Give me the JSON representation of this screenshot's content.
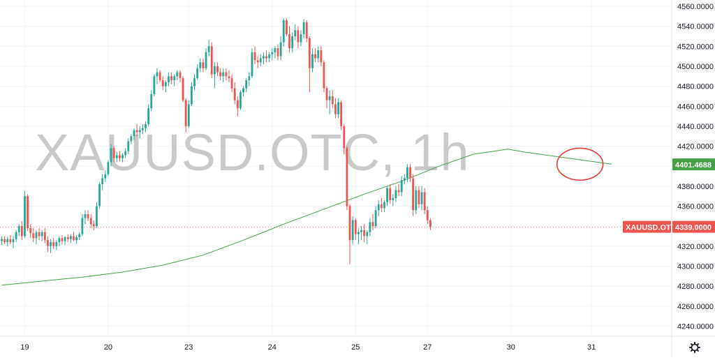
{
  "chart_data": {
    "type": "candlestick",
    "symbol": "XAUUSD.OTC, 1h",
    "timeframe": "1h",
    "ylim": [
      4225,
      4565
    ],
    "y_ticks": [
      4240,
      4260,
      4280,
      4300,
      4320,
      4340,
      4360,
      4380,
      4400,
      4420,
      4440,
      4460,
      4480,
      4500,
      4520,
      4540,
      4560
    ],
    "y_tick_labels": [
      "4240.0000",
      "4260.0000",
      "4280.0000",
      "4300.0000",
      "4320.0000",
      "4340.0000",
      "4360.0000",
      "4380.0000",
      "4400.0000",
      "4420.0000",
      "4440.0000",
      "4460.0000",
      "4480.0000",
      "4500.0000",
      "4520.0000",
      "4540.0000",
      "4560.0000"
    ],
    "x_ticks": [
      {
        "label": "19",
        "index": 8
      },
      {
        "label": "20",
        "index": 37
      },
      {
        "label": "23",
        "index": 65
      },
      {
        "label": "24",
        "index": 94
      },
      {
        "label": "25",
        "index": 123
      },
      {
        "label": "27",
        "index": 148
      },
      {
        "label": "30",
        "index": 177
      },
      {
        "label": "31",
        "index": 205
      }
    ],
    "grid": true,
    "up_color": "#26a69a",
    "down_color": "#ef5350",
    "ma_color": "#43a047",
    "annotation_color": "#e53935",
    "current_price": 4339.0,
    "current_price_label": "4339.0000",
    "price_badge_label": "XAUUSD.OTC",
    "ma_value": 4401.4688,
    "ma_value_label": "4401.4688",
    "annotation": {
      "type": "ellipse",
      "center_index": 201,
      "center_price": 4402,
      "rx_bars": 8,
      "ry_price": 16
    },
    "candles": [
      {
        "o": 4325,
        "h": 4330,
        "l": 4321,
        "c": 4327
      },
      {
        "o": 4327,
        "h": 4330,
        "l": 4322,
        "c": 4324
      },
      {
        "o": 4324,
        "h": 4329,
        "l": 4320,
        "c": 4327
      },
      {
        "o": 4327,
        "h": 4331,
        "l": 4322,
        "c": 4324
      },
      {
        "o": 4324,
        "h": 4330,
        "l": 4318,
        "c": 4327
      },
      {
        "o": 4327,
        "h": 4336,
        "l": 4324,
        "c": 4334
      },
      {
        "o": 4334,
        "h": 4342,
        "l": 4330,
        "c": 4340
      },
      {
        "o": 4340,
        "h": 4345,
        "l": 4326,
        "c": 4330
      },
      {
        "o": 4330,
        "h": 4375,
        "l": 4328,
        "c": 4370
      },
      {
        "o": 4370,
        "h": 4372,
        "l": 4335,
        "c": 4338
      },
      {
        "o": 4338,
        "h": 4342,
        "l": 4328,
        "c": 4333
      },
      {
        "o": 4333,
        "h": 4338,
        "l": 4324,
        "c": 4328
      },
      {
        "o": 4328,
        "h": 4336,
        "l": 4322,
        "c": 4334
      },
      {
        "o": 4334,
        "h": 4338,
        "l": 4326,
        "c": 4330
      },
      {
        "o": 4330,
        "h": 4336,
        "l": 4325,
        "c": 4334
      },
      {
        "o": 4334,
        "h": 4338,
        "l": 4323,
        "c": 4326
      },
      {
        "o": 4326,
        "h": 4330,
        "l": 4314,
        "c": 4320
      },
      {
        "o": 4320,
        "h": 4327,
        "l": 4313,
        "c": 4324
      },
      {
        "o": 4324,
        "h": 4328,
        "l": 4317,
        "c": 4320
      },
      {
        "o": 4320,
        "h": 4326,
        "l": 4316,
        "c": 4324
      },
      {
        "o": 4324,
        "h": 4330,
        "l": 4320,
        "c": 4328
      },
      {
        "o": 4328,
        "h": 4331,
        "l": 4322,
        "c": 4325
      },
      {
        "o": 4325,
        "h": 4330,
        "l": 4321,
        "c": 4329
      },
      {
        "o": 4329,
        "h": 4332,
        "l": 4324,
        "c": 4327
      },
      {
        "o": 4327,
        "h": 4332,
        "l": 4323,
        "c": 4330
      },
      {
        "o": 4330,
        "h": 4334,
        "l": 4325,
        "c": 4326
      },
      {
        "o": 4326,
        "h": 4331,
        "l": 4322,
        "c": 4329
      },
      {
        "o": 4329,
        "h": 4334,
        "l": 4326,
        "c": 4332
      },
      {
        "o": 4332,
        "h": 4352,
        "l": 4330,
        "c": 4348
      },
      {
        "o": 4348,
        "h": 4356,
        "l": 4342,
        "c": 4352
      },
      {
        "o": 4352,
        "h": 4356,
        "l": 4345,
        "c": 4348
      },
      {
        "o": 4348,
        "h": 4352,
        "l": 4338,
        "c": 4342
      },
      {
        "o": 4342,
        "h": 4346,
        "l": 4336,
        "c": 4340
      },
      {
        "o": 4340,
        "h": 4364,
        "l": 4338,
        "c": 4360
      },
      {
        "o": 4360,
        "h": 4384,
        "l": 4358,
        "c": 4382
      },
      {
        "o": 4382,
        "h": 4392,
        "l": 4376,
        "c": 4388
      },
      {
        "o": 4388,
        "h": 4396,
        "l": 4384,
        "c": 4392
      },
      {
        "o": 4392,
        "h": 4406,
        "l": 4390,
        "c": 4404
      },
      {
        "o": 4404,
        "h": 4422,
        "l": 4400,
        "c": 4418
      },
      {
        "o": 4418,
        "h": 4420,
        "l": 4404,
        "c": 4408
      },
      {
        "o": 4408,
        "h": 4414,
        "l": 4404,
        "c": 4411
      },
      {
        "o": 4411,
        "h": 4415,
        "l": 4405,
        "c": 4408
      },
      {
        "o": 4408,
        "h": 4413,
        "l": 4404,
        "c": 4411
      },
      {
        "o": 4411,
        "h": 4418,
        "l": 4408,
        "c": 4415
      },
      {
        "o": 4415,
        "h": 4428,
        "l": 4412,
        "c": 4425
      },
      {
        "o": 4425,
        "h": 4432,
        "l": 4422,
        "c": 4430
      },
      {
        "o": 4430,
        "h": 4438,
        "l": 4426,
        "c": 4436
      },
      {
        "o": 4436,
        "h": 4442,
        "l": 4430,
        "c": 4434
      },
      {
        "o": 4434,
        "h": 4440,
        "l": 4428,
        "c": 4436
      },
      {
        "o": 4436,
        "h": 4442,
        "l": 4432,
        "c": 4438
      },
      {
        "o": 4438,
        "h": 4445,
        "l": 4434,
        "c": 4442
      },
      {
        "o": 4442,
        "h": 4462,
        "l": 4440,
        "c": 4458
      },
      {
        "o": 4458,
        "h": 4476,
        "l": 4455,
        "c": 4472
      },
      {
        "o": 4472,
        "h": 4492,
        "l": 4470,
        "c": 4490
      },
      {
        "o": 4490,
        "h": 4498,
        "l": 4482,
        "c": 4494
      },
      {
        "o": 4494,
        "h": 4496,
        "l": 4484,
        "c": 4486
      },
      {
        "o": 4486,
        "h": 4490,
        "l": 4476,
        "c": 4480
      },
      {
        "o": 4480,
        "h": 4486,
        "l": 4474,
        "c": 4484
      },
      {
        "o": 4484,
        "h": 4494,
        "l": 4480,
        "c": 4490
      },
      {
        "o": 4490,
        "h": 4494,
        "l": 4482,
        "c": 4486
      },
      {
        "o": 4486,
        "h": 4492,
        "l": 4480,
        "c": 4490
      },
      {
        "o": 4490,
        "h": 4496,
        "l": 4486,
        "c": 4494
      },
      {
        "o": 4494,
        "h": 4496,
        "l": 4484,
        "c": 4488
      },
      {
        "o": 4488,
        "h": 4490,
        "l": 4464,
        "c": 4466
      },
      {
        "o": 4466,
        "h": 4468,
        "l": 4434,
        "c": 4440
      },
      {
        "o": 4440,
        "h": 4466,
        "l": 4438,
        "c": 4462
      },
      {
        "o": 4462,
        "h": 4484,
        "l": 4460,
        "c": 4480
      },
      {
        "o": 4480,
        "h": 4492,
        "l": 4476,
        "c": 4488
      },
      {
        "o": 4488,
        "h": 4502,
        "l": 4486,
        "c": 4498
      },
      {
        "o": 4498,
        "h": 4508,
        "l": 4494,
        "c": 4504
      },
      {
        "o": 4504,
        "h": 4508,
        "l": 4494,
        "c": 4498
      },
      {
        "o": 4498,
        "h": 4518,
        "l": 4496,
        "c": 4514
      },
      {
        "o": 4514,
        "h": 4526,
        "l": 4510,
        "c": 4520
      },
      {
        "o": 4520,
        "h": 4524,
        "l": 4488,
        "c": 4492
      },
      {
        "o": 4492,
        "h": 4504,
        "l": 4478,
        "c": 4500
      },
      {
        "o": 4500,
        "h": 4504,
        "l": 4490,
        "c": 4494
      },
      {
        "o": 4494,
        "h": 4498,
        "l": 4486,
        "c": 4490
      },
      {
        "o": 4490,
        "h": 4498,
        "l": 4484,
        "c": 4494
      },
      {
        "o": 4494,
        "h": 4498,
        "l": 4486,
        "c": 4490
      },
      {
        "o": 4490,
        "h": 4496,
        "l": 4484,
        "c": 4488
      },
      {
        "o": 4488,
        "h": 4492,
        "l": 4474,
        "c": 4478
      },
      {
        "o": 4478,
        "h": 4484,
        "l": 4462,
        "c": 4466
      },
      {
        "o": 4466,
        "h": 4470,
        "l": 4450,
        "c": 4458
      },
      {
        "o": 4458,
        "h": 4476,
        "l": 4456,
        "c": 4474
      },
      {
        "o": 4474,
        "h": 4480,
        "l": 4470,
        "c": 4478
      },
      {
        "o": 4478,
        "h": 4488,
        "l": 4474,
        "c": 4486
      },
      {
        "o": 4486,
        "h": 4494,
        "l": 4480,
        "c": 4490
      },
      {
        "o": 4490,
        "h": 4518,
        "l": 4488,
        "c": 4514
      },
      {
        "o": 4514,
        "h": 4520,
        "l": 4502,
        "c": 4506
      },
      {
        "o": 4506,
        "h": 4510,
        "l": 4498,
        "c": 4504
      },
      {
        "o": 4504,
        "h": 4512,
        "l": 4500,
        "c": 4508
      },
      {
        "o": 4508,
        "h": 4514,
        "l": 4502,
        "c": 4510
      },
      {
        "o": 4510,
        "h": 4516,
        "l": 4504,
        "c": 4508
      },
      {
        "o": 4508,
        "h": 4514,
        "l": 4504,
        "c": 4512
      },
      {
        "o": 4512,
        "h": 4518,
        "l": 4506,
        "c": 4514
      },
      {
        "o": 4514,
        "h": 4520,
        "l": 4508,
        "c": 4518
      },
      {
        "o": 4518,
        "h": 4522,
        "l": 4506,
        "c": 4510
      },
      {
        "o": 4510,
        "h": 4530,
        "l": 4506,
        "c": 4524
      },
      {
        "o": 4524,
        "h": 4548,
        "l": 4520,
        "c": 4546
      },
      {
        "o": 4546,
        "h": 4548,
        "l": 4530,
        "c": 4532
      },
      {
        "o": 4532,
        "h": 4540,
        "l": 4514,
        "c": 4518
      },
      {
        "o": 4518,
        "h": 4534,
        "l": 4514,
        "c": 4530
      },
      {
        "o": 4530,
        "h": 4542,
        "l": 4526,
        "c": 4536
      },
      {
        "o": 4536,
        "h": 4540,
        "l": 4518,
        "c": 4524
      },
      {
        "o": 4524,
        "h": 4536,
        "l": 4520,
        "c": 4532
      },
      {
        "o": 4532,
        "h": 4547,
        "l": 4528,
        "c": 4544
      },
      {
        "o": 4544,
        "h": 4546,
        "l": 4524,
        "c": 4528
      },
      {
        "o": 4528,
        "h": 4530,
        "l": 4474,
        "c": 4498
      },
      {
        "o": 4498,
        "h": 4518,
        "l": 4494,
        "c": 4512
      },
      {
        "o": 4512,
        "h": 4518,
        "l": 4504,
        "c": 4508
      },
      {
        "o": 4508,
        "h": 4520,
        "l": 4504,
        "c": 4516
      },
      {
        "o": 4516,
        "h": 4520,
        "l": 4500,
        "c": 4504
      },
      {
        "o": 4504,
        "h": 4506,
        "l": 4474,
        "c": 4478
      },
      {
        "o": 4478,
        "h": 4480,
        "l": 4458,
        "c": 4466
      },
      {
        "o": 4466,
        "h": 4476,
        "l": 4452,
        "c": 4470
      },
      {
        "o": 4470,
        "h": 4476,
        "l": 4458,
        "c": 4462
      },
      {
        "o": 4462,
        "h": 4468,
        "l": 4448,
        "c": 4452
      },
      {
        "o": 4452,
        "h": 4468,
        "l": 4448,
        "c": 4464
      },
      {
        "o": 4464,
        "h": 4466,
        "l": 4436,
        "c": 4440
      },
      {
        "o": 4440,
        "h": 4442,
        "l": 4412,
        "c": 4418
      },
      {
        "o": 4418,
        "h": 4420,
        "l": 4356,
        "c": 4360
      },
      {
        "o": 4360,
        "h": 4362,
        "l": 4302,
        "c": 4326
      },
      {
        "o": 4326,
        "h": 4350,
        "l": 4322,
        "c": 4346
      },
      {
        "o": 4346,
        "h": 4348,
        "l": 4326,
        "c": 4332
      },
      {
        "o": 4332,
        "h": 4338,
        "l": 4322,
        "c": 4334
      },
      {
        "o": 4334,
        "h": 4340,
        "l": 4326,
        "c": 4336
      },
      {
        "o": 4336,
        "h": 4342,
        "l": 4324,
        "c": 4330
      },
      {
        "o": 4330,
        "h": 4336,
        "l": 4322,
        "c": 4334
      },
      {
        "o": 4334,
        "h": 4348,
        "l": 4330,
        "c": 4344
      },
      {
        "o": 4344,
        "h": 4352,
        "l": 4336,
        "c": 4340
      },
      {
        "o": 4340,
        "h": 4360,
        "l": 4338,
        "c": 4356
      },
      {
        "o": 4356,
        "h": 4366,
        "l": 4350,
        "c": 4362
      },
      {
        "o": 4362,
        "h": 4368,
        "l": 4354,
        "c": 4358
      },
      {
        "o": 4358,
        "h": 4366,
        "l": 4354,
        "c": 4364
      },
      {
        "o": 4364,
        "h": 4380,
        "l": 4360,
        "c": 4378
      },
      {
        "o": 4378,
        "h": 4382,
        "l": 4362,
        "c": 4366
      },
      {
        "o": 4366,
        "h": 4372,
        "l": 4360,
        "c": 4368
      },
      {
        "o": 4368,
        "h": 4380,
        "l": 4364,
        "c": 4376
      },
      {
        "o": 4376,
        "h": 4382,
        "l": 4370,
        "c": 4374
      },
      {
        "o": 4374,
        "h": 4390,
        "l": 4370,
        "c": 4386
      },
      {
        "o": 4386,
        "h": 4392,
        "l": 4382,
        "c": 4388
      },
      {
        "o": 4388,
        "h": 4402,
        "l": 4384,
        "c": 4399
      },
      {
        "o": 4399,
        "h": 4402,
        "l": 4384,
        "c": 4388
      },
      {
        "o": 4388,
        "h": 4392,
        "l": 4350,
        "c": 4356
      },
      {
        "o": 4356,
        "h": 4380,
        "l": 4352,
        "c": 4376
      },
      {
        "o": 4376,
        "h": 4380,
        "l": 4358,
        "c": 4362
      },
      {
        "o": 4362,
        "h": 4380,
        "l": 4356,
        "c": 4374
      },
      {
        "o": 4374,
        "h": 4378,
        "l": 4352,
        "c": 4356
      },
      {
        "o": 4356,
        "h": 4360,
        "l": 4342,
        "c": 4346
      },
      {
        "o": 4346,
        "h": 4348,
        "l": 4336,
        "c": 4339
      }
    ],
    "ma": [
      [
        0,
        4281
      ],
      [
        14,
        4285
      ],
      [
        28,
        4289
      ],
      [
        42,
        4294
      ],
      [
        56,
        4301
      ],
      [
        70,
        4311
      ],
      [
        84,
        4326
      ],
      [
        98,
        4342
      ],
      [
        112,
        4357
      ],
      [
        126,
        4372
      ],
      [
        140,
        4386
      ],
      [
        152,
        4400
      ],
      [
        164,
        4412
      ],
      [
        176,
        4417
      ],
      [
        182,
        4414
      ],
      [
        192,
        4410
      ],
      [
        202,
        4406
      ],
      [
        212,
        4402
      ]
    ]
  }
}
